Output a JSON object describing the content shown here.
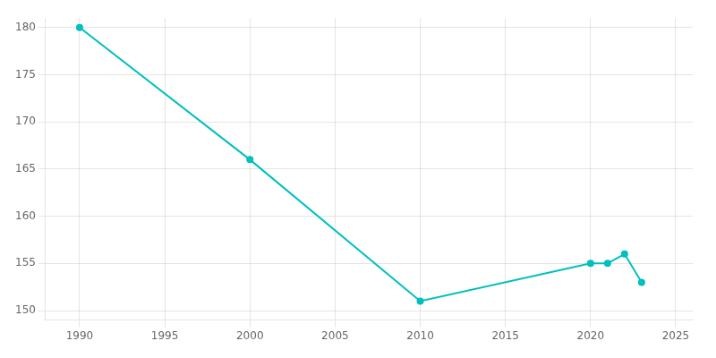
{
  "chart_data": {
    "type": "line",
    "x": [
      1990,
      2000,
      2010,
      2020,
      2021,
      2022,
      2023
    ],
    "values": [
      180,
      166,
      151,
      155,
      155,
      156,
      153
    ],
    "color": "#00BFBF",
    "marker": "circle",
    "xlim": [
      1988,
      2026
    ],
    "ylim": [
      149,
      181
    ],
    "xticks": [
      1990,
      1995,
      2000,
      2005,
      2010,
      2015,
      2020,
      2025
    ],
    "yticks": [
      150,
      155,
      160,
      165,
      170,
      175,
      180
    ],
    "grid": true
  }
}
